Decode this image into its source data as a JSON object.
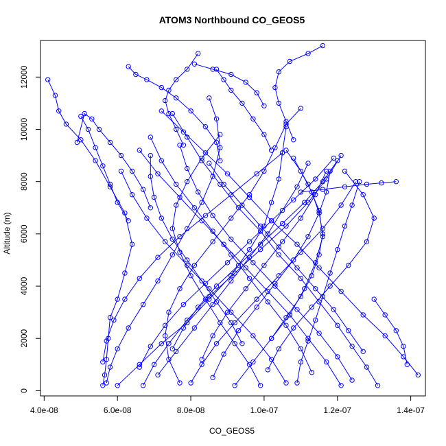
{
  "chart_data": {
    "type": "line",
    "title": "ATOM3 Northbound CO_GEOS5",
    "xlabel": "CO_GEOS5",
    "ylabel": "Altitude (m)",
    "xlim": [
      3.9e-08,
      1.44e-07
    ],
    "ylim": [
      -200,
      13400
    ],
    "xticks": [
      {
        "value": 4e-08,
        "label": "4.0e-08"
      },
      {
        "value": 6e-08,
        "label": "6.0e-08"
      },
      {
        "value": 8e-08,
        "label": "8.0e-08"
      },
      {
        "value": 1e-07,
        "label": "1.0e-07"
      },
      {
        "value": 1.2e-07,
        "label": "1.2e-07"
      },
      {
        "value": 1.4e-07,
        "label": "1.4e-07"
      }
    ],
    "yticks": [
      {
        "value": 0,
        "label": "0"
      },
      {
        "value": 2000,
        "label": "2000"
      },
      {
        "value": 4000,
        "label": "4000"
      },
      {
        "value": 6000,
        "label": "6000"
      },
      {
        "value": 8000,
        "label": "8000"
      },
      {
        "value": 10000,
        "label": "10000"
      },
      {
        "value": 12000,
        "label": "12000"
      }
    ],
    "series_color": "#0000ff",
    "marker": "open-circle",
    "grid": false,
    "legend": "none",
    "series": [
      {
        "x": [
          5.6e-08,
          5.65e-08,
          5.7e-08,
          5.75e-08,
          5.8e-08,
          6e-08,
          6.2e-08,
          6.4e-08,
          6.2e-08,
          5.8e-08,
          5.4e-08,
          5e-08,
          4.6e-08,
          4.4e-08,
          4.3e-08,
          4.1e-08
        ],
        "y": [
          200,
          600,
          1200,
          2000,
          2800,
          3500,
          4500,
          5600,
          6800,
          7800,
          8800,
          9600,
          10200,
          10700,
          11300,
          11900
        ]
      },
      {
        "x": [
          5.7e-08,
          5.8e-08,
          6e-08,
          6.3e-08,
          6.7e-08,
          7.1e-08,
          7.5e-08,
          7.9e-08,
          8.3e-08,
          8.6e-08,
          8.8e-08,
          8.7e-08,
          8.5e-08
        ],
        "y": [
          300,
          900,
          1600,
          2400,
          3300,
          4200,
          5200,
          6200,
          7200,
          8200,
          9300,
          10400,
          11200
        ]
      },
      {
        "x": [
          6e-08,
          6.6e-08,
          7.2e-08,
          7.9e-08,
          8.5e-08,
          9.1e-08,
          9.6e-08,
          1e-07,
          1.02e-07,
          1.04e-07,
          1.05e-07,
          1.06e-07
        ],
        "y": [
          200,
          1000,
          1800,
          2600,
          3500,
          4400,
          5400,
          6300,
          7200,
          8100,
          9100,
          10100
        ]
      },
      {
        "x": [
          1.31e-07,
          1.28e-07,
          1.24e-07,
          1.2e-07,
          1.15e-07,
          1.1e-07,
          1.04e-07,
          9.9e-08,
          9.3e-08,
          8.8e-08,
          8.3e-08,
          7.9e-08,
          7.5e-08
        ],
        "y": [
          200,
          900,
          1700,
          2500,
          3400,
          4300,
          5200,
          6100,
          7000,
          7900,
          8800,
          9700,
          10600
        ]
      },
      {
        "x": [
          1.42e-07,
          1.38e-07,
          1.33e-07,
          1.27e-07,
          1.21e-07,
          1.15e-07,
          1.09e-07,
          1.02e-07,
          9.6e-08,
          9e-08,
          8.4e-08,
          7.8e-08,
          7.2e-08
        ],
        "y": [
          600,
          1300,
          2100,
          2900,
          3800,
          4700,
          5600,
          6500,
          7400,
          8300,
          9100,
          9900,
          10700
        ]
      },
      {
        "x": [
          1.09e-07,
          1.1e-07,
          1.12e-07,
          1.14e-07,
          1.16e-07,
          1.18e-07,
          1.2e-07,
          1.22e-07,
          1.24e-07,
          1.26e-07
        ],
        "y": [
          300,
          1100,
          1900,
          2700,
          3600,
          4500,
          5400,
          6300,
          7100,
          8000
        ]
      },
      {
        "x": [
          9.9e-08,
          9.6e-08,
          9.2e-08,
          8.8e-08,
          8.4e-08,
          8e-08,
          7.7e-08,
          7.5e-08,
          7.6e-08,
          7.9e-08,
          8.3e-08,
          8.8e-08
        ],
        "y": [
          200,
          1000,
          1800,
          2600,
          3500,
          4400,
          5300,
          6200,
          7100,
          8000,
          8900,
          9800
        ]
      },
      {
        "x": [
          1.21e-07,
          1.17e-07,
          1.12e-07,
          1.07e-07,
          1.01e-07,
          9.5e-08,
          8.9e-08,
          8.3e-08,
          7.7e-08,
          7.1e-08,
          6.6e-08
        ],
        "y": [
          200,
          1100,
          2000,
          2900,
          3800,
          4700,
          5600,
          6500,
          7400,
          8300,
          9200
        ]
      },
      {
        "x": [
          6.7e-08,
          7e-08,
          7.4e-08,
          7.9e-08,
          8.5e-08,
          9.2e-08,
          9.9e-08,
          1.06e-07,
          1.12e-07,
          1.17e-07,
          1.21e-07
        ],
        "y": [
          200,
          1000,
          1800,
          2700,
          3600,
          4500,
          5400,
          6300,
          7200,
          8100,
          9000
        ]
      },
      {
        "x": [
          9.2e-08,
          9.7e-08,
          1.02e-07,
          1.07e-07,
          1.11e-07,
          1.14e-07,
          1.16e-07,
          1.15e-07,
          1.12e-07,
          1.08e-07
        ],
        "y": [
          200,
          1100,
          2000,
          2900,
          3900,
          4900,
          5900,
          6900,
          7900,
          8900
        ]
      },
      {
        "x": [
          7.7e-08,
          7.4e-08,
          7.3e-08,
          7.4e-08,
          7.7e-08,
          8.1e-08,
          8.6e-08,
          9.1e-08,
          9.6e-08,
          1e-07,
          1.03e-07,
          1.06e-07,
          1.1e-07
        ],
        "y": [
          300,
          1200,
          2100,
          3000,
          3900,
          4800,
          5700,
          6600,
          7500,
          8400,
          9300,
          10200,
          10800
        ]
      },
      {
        "x": [
          1.01e-07,
          1.04e-07,
          1.08e-07,
          1.13e-07,
          1.18e-07,
          1.23e-07,
          1.28e-07,
          1.3e-07,
          1.27e-07,
          1.22e-07
        ],
        "y": [
          800,
          1600,
          2400,
          3200,
          4000,
          4800,
          5700,
          6600,
          7500,
          8400
        ]
      },
      {
        "x": [
          8.6e-08,
          8.9e-08,
          9.3e-08,
          9.8e-08,
          1.03e-07,
          1.08e-07,
          1.12e-07,
          1.15e-07,
          1.17e-07,
          1.18e-07
        ],
        "y": [
          500,
          1400,
          2300,
          3200,
          4100,
          5000,
          5900,
          6800,
          7600,
          8400
        ]
      },
      {
        "x": [
          1.06e-07,
          1.02e-07,
          9.7e-08,
          9.1e-08,
          8.5e-08,
          7.9e-08,
          7.3e-08,
          6.8e-08,
          6.4e-08,
          6.1e-08
        ],
        "y": [
          300,
          1200,
          2100,
          3000,
          3900,
          4800,
          5700,
          6600,
          7500,
          8400
        ]
      },
      {
        "x": [
          1.24e-07,
          1.2e-07,
          1.15e-07,
          1.09e-07,
          1.03e-07,
          9.7e-08,
          9.1e-08,
          8.6e-08,
          8.2e-08,
          7.9e-08,
          7.7e-08
        ],
        "y": [
          400,
          1300,
          2200,
          3100,
          4000,
          4900,
          5800,
          6700,
          7600,
          8500,
          9400
        ]
      },
      {
        "x": [
          7.1e-08,
          7.6e-08,
          8.1e-08,
          8.6e-08,
          9.1e-08,
          9.6e-08,
          1.01e-07,
          1.05e-07,
          1.09e-07,
          1.12e-07
        ],
        "y": [
          600,
          1500,
          2400,
          3300,
          4200,
          5100,
          6000,
          6900,
          7800,
          8700
        ]
      },
      {
        "x": [
          1.13e-07,
          1.1e-07,
          1.06e-07,
          1.01e-07,
          9.6e-08,
          9.1e-08,
          8.6e-08,
          8.1e-08,
          7.6e-08,
          7.2e-08,
          6.9e-08
        ],
        "y": [
          700,
          1600,
          2500,
          3400,
          4300,
          5200,
          6100,
          7000,
          7900,
          8800,
          9700
        ]
      },
      {
        "x": [
          8e-08,
          8.3e-08,
          8.7e-08,
          9.2e-08,
          9.8e-08,
          1.04e-07,
          1.1e-07,
          1.16e-07,
          1.21e-07,
          1.25e-07
        ],
        "y": [
          300,
          1000,
          1800,
          2600,
          3500,
          4400,
          5300,
          6200,
          7100,
          8000
        ]
      },
      {
        "x": [
          6.6e-08,
          6.9e-08,
          7.3e-08,
          7.8e-08,
          8.4e-08,
          9e-08,
          9.6e-08,
          1.02e-07,
          1.08e-07,
          1.14e-07,
          1.19e-07
        ],
        "y": [
          900,
          1700,
          2500,
          3300,
          4100,
          4900,
          5700,
          6500,
          7300,
          8100,
          8900
        ]
      },
      {
        "x": [
          1.27e-07,
          1.23e-07,
          1.19e-07,
          1.14e-07,
          1.09e-07,
          1.04e-07,
          9.9e-08,
          9.4e-08,
          8.9e-08,
          8.5e-08
        ],
        "y": [
          1500,
          2300,
          3100,
          3900,
          4700,
          5500,
          6300,
          7100,
          7900,
          8700
        ]
      },
      {
        "x": [
          1.02e-07,
          1.06e-07,
          1.1e-07,
          1.13e-07,
          1.15e-07,
          1.16e-07,
          1.15e-07,
          1.13e-07,
          1.1e-07,
          1.06e-07
        ],
        "y": [
          2000,
          2800,
          3600,
          4400,
          5200,
          6000,
          6800,
          7600,
          8400,
          9200
        ]
      },
      {
        "x": [
          8.3e-08,
          8.6e-08,
          9e-08,
          9.5e-08,
          1e-07,
          1.05e-07,
          1.1e-07,
          1.14e-07,
          1.17e-07
        ],
        "y": [
          1200,
          2100,
          3000,
          3900,
          4800,
          5700,
          6600,
          7500,
          8400
        ]
      },
      {
        "x": [
          7.5e-08,
          7.8e-08,
          8.2e-08,
          8.7e-08,
          9.3e-08,
          9.9e-08,
          1.05e-07,
          1.11e-07,
          1.16e-07,
          1.2e-07
        ],
        "y": [
          1600,
          2400,
          3200,
          4000,
          4800,
          5600,
          6400,
          7200,
          8000,
          8800
        ]
      },
      {
        "x": [
          9.4e-08,
          9.1e-08,
          8.7e-08,
          8.3e-08,
          7.9e-08,
          7.5e-08,
          7.2e-08,
          7e-08,
          6.9e-08,
          6.9e-08
        ],
        "y": [
          1800,
          2600,
          3400,
          4200,
          5000,
          5800,
          6600,
          7400,
          8200,
          9000
        ]
      },
      {
        "x": [
          5.6e-08,
          5.7e-08,
          5.9e-08,
          6.2e-08,
          6.6e-08,
          7.1e-08,
          7.7e-08,
          8.4e-08,
          9.1e-08,
          9.8e-08,
          1.05e-07
        ],
        "y": [
          1100,
          1900,
          2700,
          3500,
          4300,
          5100,
          5900,
          6700,
          7500,
          8300,
          9100
        ]
      },
      {
        "x": [
          6.3e-08,
          6e-08,
          5.8e-08,
          5.6e-08,
          5.4e-08,
          5.2e-08,
          5e-08
        ],
        "y": [
          6500,
          7200,
          7900,
          8600,
          9300,
          10000,
          10500
        ]
      },
      {
        "x": [
          6.9e-08,
          6.7e-08,
          6.4e-08,
          6.1e-08,
          5.8e-08,
          5.5e-08,
          5.3e-08,
          5.1e-08,
          4.9e-08
        ],
        "y": [
          7000,
          7700,
          8400,
          9000,
          9500,
          10000,
          10400,
          10600,
          9500
        ]
      },
      {
        "x": [
          8.8e-08,
          8.7e-08,
          8.4e-08,
          8e-08,
          7.6e-08,
          7.2e-08,
          6.8e-08,
          6.5e-08,
          6.3e-08
        ],
        "y": [
          8800,
          9500,
          10100,
          10700,
          11200,
          11600,
          11900,
          12100,
          12400
        ]
      },
      {
        "x": [
          1.02e-07,
          1e-07,
          9.7e-08,
          9.4e-08,
          9.1e-08,
          8.9e-08,
          8.7e-08
        ],
        "y": [
          9200,
          9800,
          10400,
          11000,
          11500,
          11900,
          12300
        ]
      },
      {
        "x": [
          1.08e-07,
          1.06e-07,
          1.04e-07,
          1.03e-07,
          1.04e-07,
          1.07e-07,
          1.12e-07,
          1.16e-07
        ],
        "y": [
          9600,
          10300,
          11000,
          11600,
          12200,
          12600,
          12900,
          13200
        ]
      },
      {
        "x": [
          7.8e-08,
          7.6e-08,
          7.4e-08,
          7.3e-08,
          7.4e-08,
          7.6e-08,
          7.9e-08,
          8.2e-08
        ],
        "y": [
          9400,
          10000,
          10600,
          11100,
          11500,
          11900,
          12300,
          12900
        ]
      },
      {
        "x": [
          1.1e-07,
          1.16e-07,
          1.22e-07,
          1.28e-07,
          1.32e-07,
          1.36e-07
        ],
        "y": [
          7600,
          7700,
          7800,
          7900,
          7950,
          8000
        ]
      },
      {
        "x": [
          1.3e-07,
          1.33e-07,
          1.36e-07,
          1.38e-07,
          1.39e-07
        ],
        "y": [
          3500,
          2900,
          2300,
          1700,
          1000
        ]
      },
      {
        "x": [
          1e-07,
          9.8e-08,
          9.5e-08,
          9.1e-08,
          8.6e-08,
          8.1e-08
        ],
        "y": [
          10900,
          11400,
          11800,
          12100,
          12300,
          12500
        ]
      }
    ]
  }
}
